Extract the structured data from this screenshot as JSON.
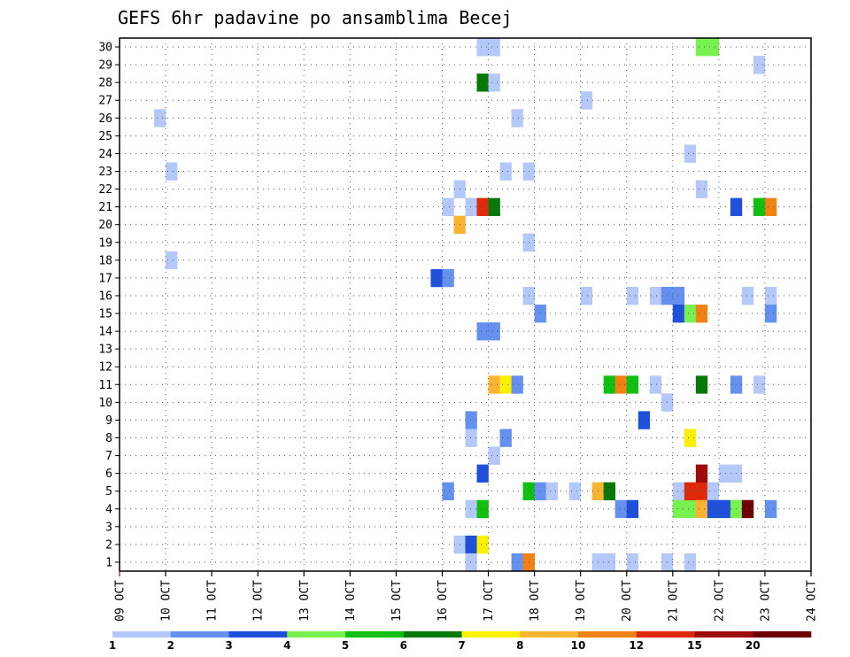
{
  "chart_data": {
    "type": "heatmap",
    "title": "GEFS 6hr padavine po ansamblima Becej",
    "xlabel": "",
    "ylabel": "",
    "x_tick_labels": [
      "09 OCT",
      "10 OCT",
      "11 OCT",
      "12 OCT",
      "13 OCT",
      "14 OCT",
      "15 OCT",
      "16 OCT",
      "17 OCT",
      "18 OCT",
      "19 OCT",
      "20 OCT",
      "21 OCT",
      "22 OCT",
      "23 OCT",
      "24 OCT"
    ],
    "y_tick_labels": [
      "1",
      "2",
      "3",
      "4",
      "5",
      "6",
      "7",
      "8",
      "9",
      "10",
      "11",
      "12",
      "13",
      "14",
      "15",
      "16",
      "17",
      "18",
      "19",
      "20",
      "21",
      "22",
      "23",
      "24",
      "25",
      "26",
      "27",
      "28",
      "29",
      "30"
    ],
    "x_axis": "time step (6 h) from 09 OCT 00Z",
    "y_axis": "ensemble member",
    "grid": true,
    "legend": {
      "placement": "bottom",
      "thresholds": [
        "1",
        "2",
        "3",
        "4",
        "5",
        "6",
        "7",
        "8",
        "10",
        "12",
        "15",
        "20"
      ],
      "colors": [
        "#b4c8fa",
        "#6490f0",
        "#1e50dc",
        "#78f050",
        "#10c010",
        "#087808",
        "#faf000",
        "#fab432",
        "#f08214",
        "#dc2a0a",
        "#a00a0a",
        "#6e0000"
      ]
    },
    "cells": [
      {
        "t": 3,
        "m": 26,
        "c": 0
      },
      {
        "t": 4,
        "m": 23,
        "c": 0
      },
      {
        "t": 4,
        "m": 18,
        "c": 0
      },
      {
        "t": 27,
        "m": 17,
        "c": 2
      },
      {
        "t": 28,
        "m": 17,
        "c": 1
      },
      {
        "t": 28,
        "m": 21,
        "c": 0
      },
      {
        "t": 29,
        "m": 22,
        "c": 0
      },
      {
        "t": 29,
        "m": 20,
        "c": 7
      },
      {
        "t": 28,
        "m": 5,
        "c": 1
      },
      {
        "t": 29,
        "m": 2,
        "c": 0
      },
      {
        "t": 30,
        "m": 2,
        "c": 2
      },
      {
        "t": 31,
        "m": 2,
        "c": 6
      },
      {
        "t": 30,
        "m": 9,
        "c": 1
      },
      {
        "t": 30,
        "m": 8,
        "c": 0
      },
      {
        "t": 30,
        "m": 4,
        "c": 0
      },
      {
        "t": 31,
        "m": 4,
        "c": 4
      },
      {
        "t": 30,
        "m": 1,
        "c": 0
      },
      {
        "t": 30,
        "m": 21,
        "c": 0
      },
      {
        "t": 31,
        "m": 21,
        "c": 9
      },
      {
        "t": 32,
        "m": 21,
        "c": 5
      },
      {
        "t": 31,
        "m": 30,
        "c": 0
      },
      {
        "t": 32,
        "m": 30,
        "c": 0
      },
      {
        "t": 31,
        "m": 28,
        "c": 5
      },
      {
        "t": 32,
        "m": 28,
        "c": 0
      },
      {
        "t": 31,
        "m": 14,
        "c": 1
      },
      {
        "t": 32,
        "m": 14,
        "c": 1
      },
      {
        "t": 31,
        "m": 6,
        "c": 2
      },
      {
        "t": 32,
        "m": 7,
        "c": 0
      },
      {
        "t": 32,
        "m": 11,
        "c": 7
      },
      {
        "t": 33,
        "m": 11,
        "c": 6
      },
      {
        "t": 33,
        "m": 23,
        "c": 0
      },
      {
        "t": 33,
        "m": 8,
        "c": 1
      },
      {
        "t": 34,
        "m": 26,
        "c": 0
      },
      {
        "t": 35,
        "m": 23,
        "c": 0
      },
      {
        "t": 35,
        "m": 19,
        "c": 0
      },
      {
        "t": 35,
        "m": 16,
        "c": 0
      },
      {
        "t": 36,
        "m": 15,
        "c": 1
      },
      {
        "t": 35,
        "m": 5,
        "c": 4
      },
      {
        "t": 36,
        "m": 5,
        "c": 1
      },
      {
        "t": 37,
        "m": 5,
        "c": 0
      },
      {
        "t": 34,
        "m": 11,
        "c": 1
      },
      {
        "t": 34,
        "m": 1,
        "c": 1
      },
      {
        "t": 35,
        "m": 1,
        "c": 8
      },
      {
        "t": 39,
        "m": 5,
        "c": 0
      },
      {
        "t": 40,
        "m": 27,
        "c": 0
      },
      {
        "t": 40,
        "m": 16,
        "c": 0
      },
      {
        "t": 41,
        "m": 5,
        "c": 7
      },
      {
        "t": 42,
        "m": 5,
        "c": 5
      },
      {
        "t": 41,
        "m": 1,
        "c": 0
      },
      {
        "t": 42,
        "m": 1,
        "c": 0
      },
      {
        "t": 42,
        "m": 11,
        "c": 4
      },
      {
        "t": 43,
        "m": 11,
        "c": 8
      },
      {
        "t": 44,
        "m": 11,
        "c": 4
      },
      {
        "t": 43,
        "m": 4,
        "c": 1
      },
      {
        "t": 44,
        "m": 4,
        "c": 2
      },
      {
        "t": 44,
        "m": 16,
        "c": 0
      },
      {
        "t": 44,
        "m": 1,
        "c": 0
      },
      {
        "t": 45,
        "m": 9,
        "c": 2
      },
      {
        "t": 46,
        "m": 16,
        "c": 0
      },
      {
        "t": 46,
        "m": 11,
        "c": 0
      },
      {
        "t": 47,
        "m": 1,
        "c": 0
      },
      {
        "t": 47,
        "m": 10,
        "c": 0
      },
      {
        "t": 47,
        "m": 16,
        "c": 1
      },
      {
        "t": 48,
        "m": 16,
        "c": 1
      },
      {
        "t": 48,
        "m": 15,
        "c": 2
      },
      {
        "t": 48,
        "m": 5,
        "c": 0
      },
      {
        "t": 48,
        "m": 4,
        "c": 3
      },
      {
        "t": 49,
        "m": 4,
        "c": 3
      },
      {
        "t": 49,
        "m": 1,
        "c": 0
      },
      {
        "t": 49,
        "m": 24,
        "c": 0
      },
      {
        "t": 49,
        "m": 15,
        "c": 3
      },
      {
        "t": 49,
        "m": 8,
        "c": 6
      },
      {
        "t": 49,
        "m": 5,
        "c": 9
      },
      {
        "t": 50,
        "m": 5,
        "c": 9
      },
      {
        "t": 50,
        "m": 4,
        "c": 7
      },
      {
        "t": 50,
        "m": 6,
        "c": 10
      },
      {
        "t": 50,
        "m": 11,
        "c": 5
      },
      {
        "t": 50,
        "m": 15,
        "c": 8
      },
      {
        "t": 50,
        "m": 22,
        "c": 0
      },
      {
        "t": 50,
        "m": 30,
        "c": 3
      },
      {
        "t": 51,
        "m": 30,
        "c": 3
      },
      {
        "t": 51,
        "m": 5,
        "c": 0
      },
      {
        "t": 51,
        "m": 4,
        "c": 2
      },
      {
        "t": 52,
        "m": 4,
        "c": 2
      },
      {
        "t": 52,
        "m": 6,
        "c": 0
      },
      {
        "t": 53,
        "m": 6,
        "c": 0
      },
      {
        "t": 53,
        "m": 11,
        "c": 1
      },
      {
        "t": 53,
        "m": 4,
        "c": 3
      },
      {
        "t": 53,
        "m": 21,
        "c": 2
      },
      {
        "t": 54,
        "m": 4,
        "c": 11
      },
      {
        "t": 54,
        "m": 16,
        "c": 0
      },
      {
        "t": 55,
        "m": 29,
        "c": 0
      },
      {
        "t": 55,
        "m": 11,
        "c": 0
      },
      {
        "t": 55,
        "m": 21,
        "c": 4
      },
      {
        "t": 56,
        "m": 21,
        "c": 8
      },
      {
        "t": 56,
        "m": 16,
        "c": 0
      },
      {
        "t": 56,
        "m": 15,
        "c": 1
      },
      {
        "t": 56,
        "m": 4,
        "c": 1
      }
    ]
  }
}
